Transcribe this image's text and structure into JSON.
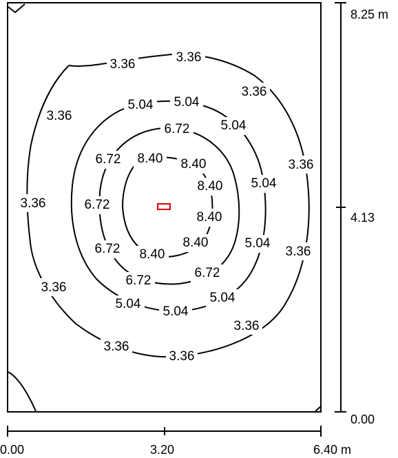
{
  "diagram": {
    "type": "isolux-contour-plot",
    "contour_levels": [
      "3.36",
      "5.04",
      "6.72",
      "8.40"
    ],
    "contour_labels": {
      "level_3_36": [
        "3.36",
        "3.36",
        "3.36",
        "3.36",
        "3.36",
        "3.36",
        "3.36",
        "3.36",
        "3.36",
        "3.36",
        "3.36"
      ],
      "level_5_04": [
        "5.04",
        "5.04",
        "5.04",
        "5.04",
        "5.04",
        "5.04",
        "5.04",
        "5.04"
      ],
      "level_6_72": [
        "6.72",
        "6.72",
        "6.72",
        "6.72",
        "6.72",
        "6.72"
      ],
      "level_8_40": [
        "8.40",
        "8.40",
        "8.40",
        "8.40",
        "8.40",
        "8.40"
      ]
    },
    "x_axis": {
      "ticks": [
        "0.00",
        "3.20",
        "6.40 m"
      ]
    },
    "y_axis": {
      "ticks": [
        "8.25 m",
        "4.13",
        "0.00"
      ]
    },
    "colors": {
      "line": "#000000",
      "luminaire": "#e00000",
      "background": "#ffffff"
    }
  }
}
